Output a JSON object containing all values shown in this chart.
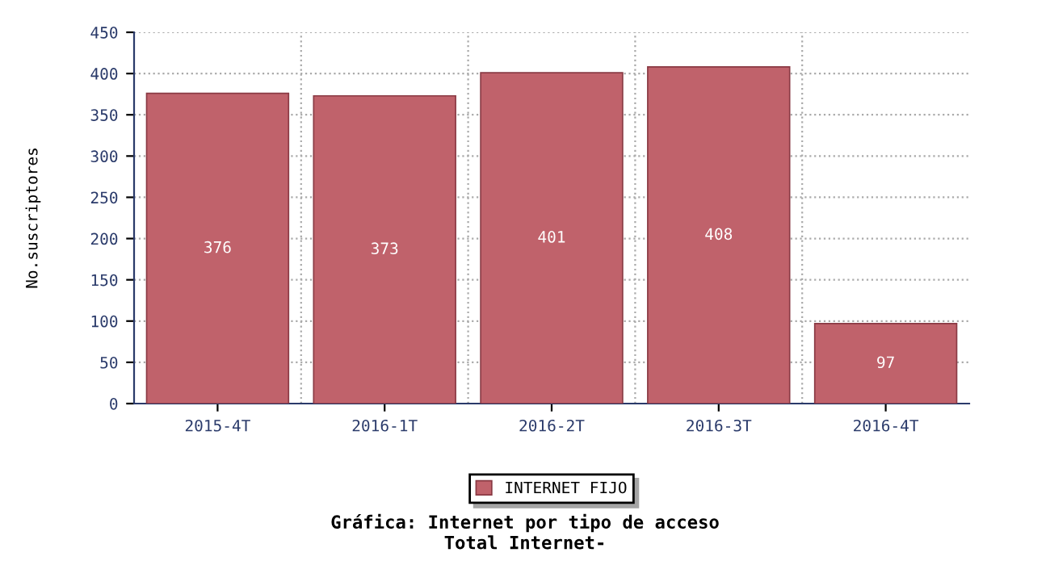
{
  "chart_data": {
    "type": "bar",
    "title": "Gráfica: Internet por tipo de acceso",
    "subtitle": "Total Internet-",
    "ylabel": "No.suscriptores",
    "categories": [
      "2015-4T",
      "2016-1T",
      "2016-2T",
      "2016-3T",
      "2016-4T"
    ],
    "series": [
      {
        "name": "INTERNET FIJO",
        "color": "#c0626b",
        "values": [
          376,
          373,
          401,
          408,
          97
        ]
      }
    ],
    "ylim": [
      0,
      450
    ],
    "yticks": [
      0,
      50,
      100,
      150,
      200,
      250,
      300,
      350,
      400,
      450
    ],
    "grid": true,
    "legend": "bottom",
    "data_labels": true
  }
}
